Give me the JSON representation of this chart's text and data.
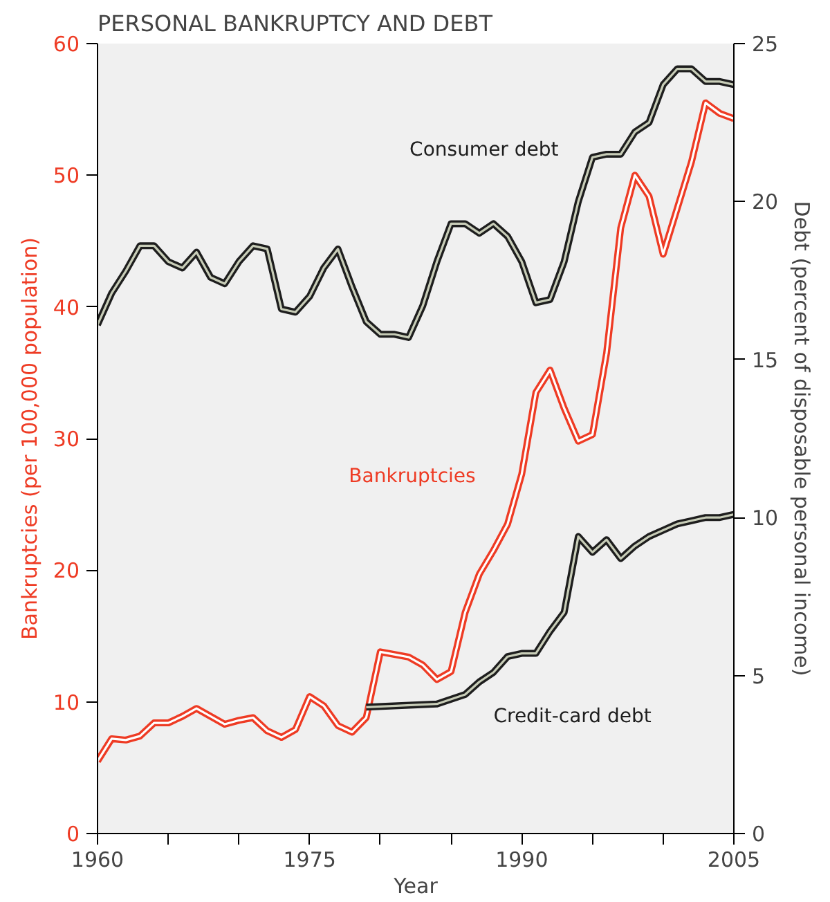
{
  "chart_data": {
    "type": "line",
    "title": "PERSONAL BANKRUPTCY AND DEBT",
    "xlabel": "Year",
    "ylabel": "Bankruptcies (per 100,000 population)",
    "y2label": "Debt (percent of disposable personal income)",
    "xlim": [
      1960,
      2005
    ],
    "xticks": [
      1960,
      {
        "value": 1965,
        "label": null
      },
      {
        "value": 1970,
        "label": null
      },
      1975,
      {
        "value": 1980,
        "label": null
      },
      {
        "value": 1985,
        "label": null
      },
      1990,
      {
        "value": 1995,
        "label": null
      },
      {
        "value": 2000,
        "label": null
      },
      2005
    ],
    "ylim": [
      0,
      60
    ],
    "yticks": [
      0,
      10,
      20,
      30,
      40,
      50,
      60
    ],
    "y2lim": [
      0,
      25
    ],
    "y2ticks": [
      0,
      5,
      10,
      15,
      20,
      25
    ],
    "line_style": "solid",
    "series": [
      {
        "name": "Consumer debt",
        "color": "#1e1e1e",
        "axis": "y2",
        "x": [
          1960,
          1961,
          1962,
          1963,
          1964,
          1965,
          1966,
          1967,
          1968,
          1969,
          1970,
          1971,
          1972,
          1973,
          1974,
          1975,
          1976,
          1977,
          1978,
          1979,
          1980,
          1981,
          1982,
          1983,
          1984,
          1985,
          1986,
          1987,
          1988,
          1989,
          1990,
          1991,
          1992,
          1993,
          1994,
          1995,
          1996,
          1997,
          1998,
          1999,
          2000,
          2001,
          2002,
          2003,
          2004,
          2005
        ],
        "values": [
          16.1,
          17.1,
          17.8,
          18.6,
          18.6,
          18.1,
          17.9,
          18.4,
          17.6,
          17.4,
          18.1,
          18.6,
          18.5,
          16.6,
          16.5,
          17.0,
          17.9,
          18.5,
          17.3,
          16.2,
          15.8,
          15.8,
          15.7,
          16.7,
          18.1,
          19.3,
          19.3,
          19.0,
          19.3,
          18.9,
          18.1,
          16.8,
          16.9,
          18.1,
          20.0,
          21.4,
          21.5,
          21.5,
          22.2,
          22.5,
          23.7,
          24.2,
          24.2,
          23.8,
          23.8,
          23.7
        ]
      },
      {
        "name": "Bankruptcies",
        "color": "#ee3b24",
        "axis": "y",
        "x": [
          1960,
          1961,
          1962,
          1963,
          1964,
          1965,
          1966,
          1967,
          1968,
          1969,
          1970,
          1971,
          1972,
          1973,
          1974,
          1975,
          1976,
          1977,
          1978,
          1979,
          1980,
          1981,
          1982,
          1983,
          1984,
          1985,
          1986,
          1987,
          1988,
          1989,
          1990,
          1991,
          1992,
          1993,
          1994,
          1995,
          1996,
          1997,
          1998,
          1999,
          2000,
          2001,
          2002,
          2003,
          2004,
          2005
        ],
        "values": [
          5.5,
          7.2,
          7.1,
          7.4,
          8.4,
          8.4,
          8.9,
          9.5,
          8.9,
          8.3,
          8.6,
          8.8,
          7.8,
          7.3,
          7.9,
          10.4,
          9.7,
          8.2,
          7.7,
          8.8,
          13.8,
          13.6,
          13.4,
          12.8,
          11.7,
          12.3,
          16.8,
          19.7,
          21.5,
          23.5,
          27.3,
          33.5,
          35.2,
          32.3,
          29.8,
          30.3,
          36.5,
          46.0,
          50.0,
          48.4,
          44.0,
          47.5,
          51.0,
          55.5,
          54.7,
          54.3
        ]
      },
      {
        "name": "Credit-card debt",
        "color": "#1e1e1e",
        "axis": "y2",
        "x": [
          1979,
          1984,
          1986,
          1987,
          1988,
          1989,
          1990,
          1991,
          1992,
          1993,
          1994,
          1995,
          1996,
          1997,
          1998,
          1999,
          2000,
          2001,
          2002,
          2003,
          2004,
          2005
        ],
        "values": [
          4.0,
          4.1,
          4.4,
          4.8,
          5.1,
          5.6,
          5.7,
          5.7,
          6.4,
          7.0,
          9.4,
          8.9,
          9.3,
          8.7,
          9.1,
          9.4,
          9.6,
          9.8,
          9.9,
          10.0,
          10.0,
          10.1
        ]
      }
    ]
  }
}
